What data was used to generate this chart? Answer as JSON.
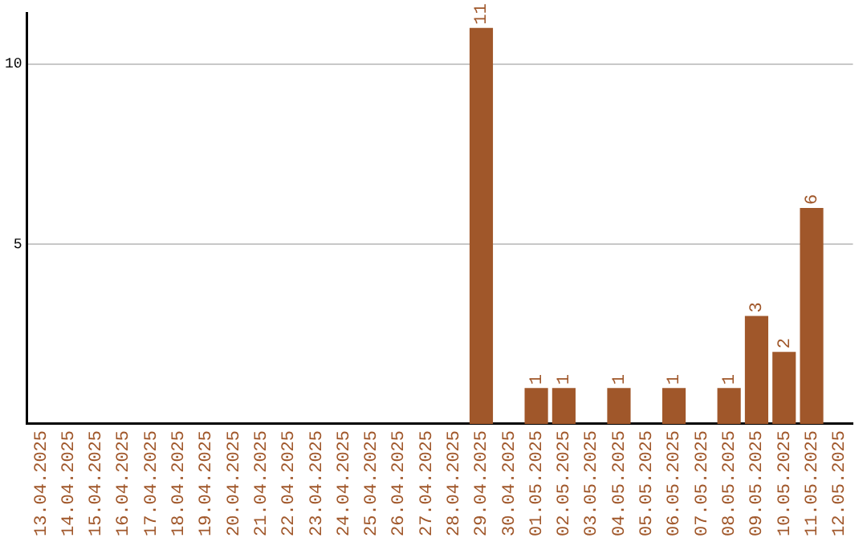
{
  "chart_data": {
    "type": "bar",
    "categories": [
      "13.04.2025",
      "14.04.2025",
      "15.04.2025",
      "16.04.2025",
      "17.04.2025",
      "18.04.2025",
      "19.04.2025",
      "20.04.2025",
      "21.04.2025",
      "22.04.2025",
      "23.04.2025",
      "24.04.2025",
      "25.04.2025",
      "26.04.2025",
      "27.04.2025",
      "28.04.2025",
      "29.04.2025",
      "30.04.2025",
      "01.05.2025",
      "02.05.2025",
      "03.05.2025",
      "04.05.2025",
      "05.05.2025",
      "06.05.2025",
      "07.05.2025",
      "08.05.2025",
      "09.05.2025",
      "10.05.2025",
      "11.05.2025",
      "12.05.2025"
    ],
    "values": [
      0,
      0,
      0,
      0,
      0,
      0,
      0,
      0,
      0,
      0,
      0,
      0,
      0,
      0,
      0,
      0,
      11,
      0,
      1,
      1,
      0,
      1,
      0,
      1,
      0,
      1,
      3,
      2,
      6,
      0
    ],
    "value_labels": [
      null,
      null,
      null,
      null,
      null,
      null,
      null,
      null,
      null,
      null,
      null,
      null,
      null,
      null,
      null,
      null,
      "11",
      null,
      "1",
      "1",
      null,
      "1",
      null,
      "1",
      null,
      "1",
      "3",
      "2",
      "6",
      null
    ],
    "color": "#a0572a",
    "ylim": [
      0,
      11.4
    ],
    "yticks": [
      5,
      10
    ],
    "grid": "y",
    "legend": false
  }
}
